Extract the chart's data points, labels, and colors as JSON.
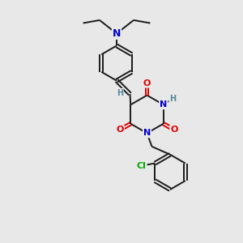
{
  "bg_color": "#e8e8e8",
  "bond_color": "#1a1a1a",
  "N_color": "#0000cc",
  "O_color": "#dd0000",
  "Cl_color": "#00aa00",
  "H_color": "#558899",
  "font_size_atom": 8,
  "figsize": [
    3.0,
    3.0
  ],
  "dpi": 100,
  "xlim": [
    0,
    10
  ],
  "ylim": [
    0,
    10
  ]
}
